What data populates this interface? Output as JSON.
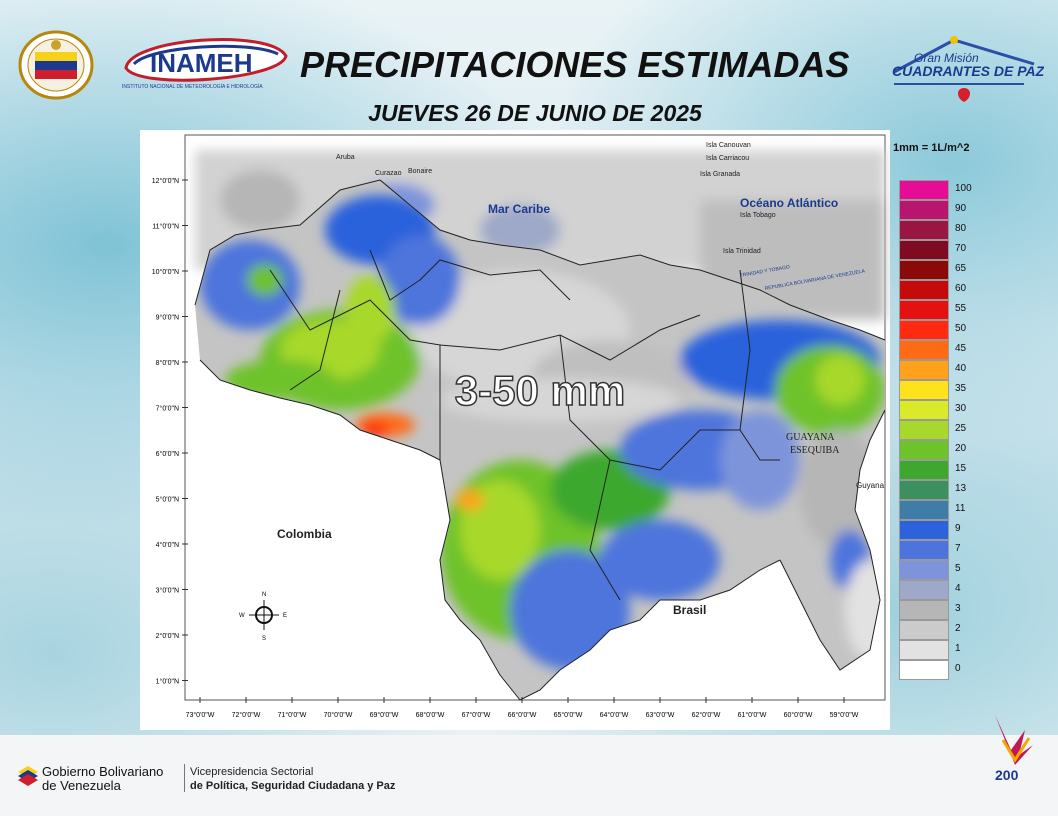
{
  "header": {
    "title": "PRECIPITACIONES ESTIMADAS",
    "date": "JUEVES 26 DE JUNIO DE 2025",
    "inameh_text": "INAMEH",
    "inameh_subtitle": "INSTITUTO NACIONAL DE METEOROLOGÍA E HIDROLOGÍA",
    "cuadrantes_line1": "Gran Misión",
    "cuadrantes_line2": "CUADRANTES DE PAZ"
  },
  "map": {
    "range_label": "3-50 mm",
    "places": {
      "mar_caribe": "Mar Caribe",
      "oceano": "Océano Atlántico",
      "colombia": "Colombia",
      "brasil": "Brasil",
      "guayana": "GUAYANA",
      "esequiba": "ESEQUIBA",
      "guyana": "Guyana",
      "aruba": "Aruba",
      "curazao": "Curazao",
      "bonaire": "Bonaire",
      "canouvan": "Isla Canouvan",
      "carriacou": "Isla Carriacou",
      "granada": "Isla Granada",
      "tobago": "Isla Tobago",
      "trinidad": "Isla Trinidad",
      "tt_border": "TRINIDAD Y TOBAGO",
      "vz_border": "REPUBLICA BOLIVARIANA DE VENEZUELA"
    },
    "lat_labels": [
      "12°0'0\"N",
      "11°0'0\"N",
      "10°0'0\"N",
      "9°0'0\"N",
      "8°0'0\"N",
      "7°0'0\"N",
      "6°0'0\"N",
      "5°0'0\"N",
      "4°0'0\"N",
      "3°0'0\"N",
      "2°0'0\"N",
      "1°0'0\"N"
    ],
    "lon_labels": [
      "73°0'0\"W",
      "72°0'0\"W",
      "71°0'0\"W",
      "70°0'0\"W",
      "69°0'0\"W",
      "68°0'0\"W",
      "67°0'0\"W",
      "66°0'0\"W",
      "65°0'0\"W",
      "64°0'0\"W",
      "63°0'0\"W",
      "62°0'0\"W",
      "61°0'0\"W",
      "60°0'0\"W",
      "59°0'0\"W"
    ],
    "compass": {
      "n": "N",
      "s": "S",
      "e": "E",
      "w": "W"
    }
  },
  "legend": {
    "unit": "1mm = 1L/m^2",
    "items": [
      {
        "label": "100",
        "color": "#e60c96"
      },
      {
        "label": "90",
        "color": "#b8166e"
      },
      {
        "label": "80",
        "color": "#991642"
      },
      {
        "label": "70",
        "color": "#7f0a22"
      },
      {
        "label": "65",
        "color": "#8a0a0a"
      },
      {
        "label": "60",
        "color": "#c40a0a"
      },
      {
        "label": "55",
        "color": "#e51010"
      },
      {
        "label": "50",
        "color": "#ff2a10"
      },
      {
        "label": "45",
        "color": "#ff6a14"
      },
      {
        "label": "40",
        "color": "#ffa11a"
      },
      {
        "label": "35",
        "color": "#ffe21e"
      },
      {
        "label": "30",
        "color": "#d9ea2a"
      },
      {
        "label": "25",
        "color": "#a8d82c"
      },
      {
        "label": "20",
        "color": "#6ec22a"
      },
      {
        "label": "15",
        "color": "#3ea82e"
      },
      {
        "label": "13",
        "color": "#3c8f5e"
      },
      {
        "label": "11",
        "color": "#3f7ca8"
      },
      {
        "label": "9",
        "color": "#2c62dc"
      },
      {
        "label": "7",
        "color": "#4d74dc"
      },
      {
        "label": "5",
        "color": "#7d94da"
      },
      {
        "label": "4",
        "color": "#9ea8c8"
      },
      {
        "label": "3",
        "color": "#b6b6b6"
      },
      {
        "label": "2",
        "color": "#cbcbcb"
      },
      {
        "label": "1",
        "color": "#e2e2e2"
      },
      {
        "label": "0",
        "color": "#ffffff"
      }
    ]
  },
  "footer": {
    "gobierno_line1": "Gobierno Bolivariano",
    "gobierno_line2": "de Venezuela",
    "vice_line1": "Vicepresidencia Sectorial",
    "vice_line2": "de Política, Seguridad Ciudadana y Paz",
    "bicentennial_number": "200"
  }
}
